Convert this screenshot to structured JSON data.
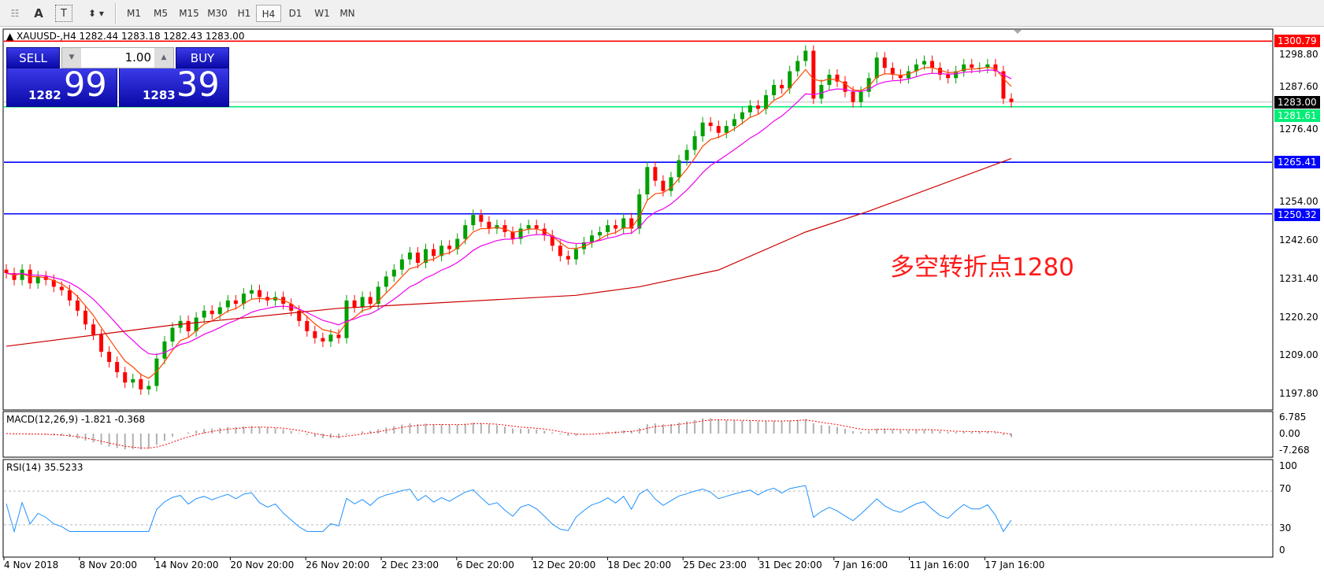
{
  "toolbar": {
    "tools": [
      {
        "icon": "grid-icon"
      },
      {
        "label": "A",
        "icon": "text-icon"
      },
      {
        "label": "T",
        "icon": "text-label-icon"
      },
      {
        "icon": "arrows-icon"
      }
    ],
    "timeframes": [
      "M1",
      "M5",
      "M15",
      "M30",
      "H1",
      "H4",
      "D1",
      "W1",
      "MN"
    ],
    "active_timeframe": "H4"
  },
  "chart": {
    "header": "XAUUSD-,H4  1282.44 1283.18 1282.43 1283.00",
    "annotation": "多空转折点1280",
    "price_ticks": [
      "1298.80",
      "1287.60",
      "1276.40",
      "1254.00",
      "1242.60",
      "1231.40",
      "1220.20",
      "1209.00",
      "1197.80"
    ],
    "levels": [
      {
        "label": "1300.79",
        "value": 1300.79,
        "color": "#ff0000"
      },
      {
        "label": "1283.00",
        "value": 1283.0,
        "color": "#000000"
      },
      {
        "label": "1281.61",
        "value": 1281.61,
        "color": "#00ee77"
      },
      {
        "label": "1265.41",
        "value": 1265.41,
        "color": "#0000ff"
      },
      {
        "label": "1250.32",
        "value": 1250.32,
        "color": "#0000ff"
      }
    ],
    "bull_color": "#00a000",
    "bear_color": "#ff0000",
    "ma_fast_color": "#ff4500",
    "ma_mid_color": "#ee00ee",
    "ma_slow_color": "#cc0000",
    "closes": [
      1233,
      1231,
      1234,
      1230,
      1232,
      1231,
      1229,
      1228,
      1225,
      1222,
      1218,
      1215,
      1210,
      1207,
      1204,
      1201,
      1202,
      1199,
      1200,
      1208,
      1213,
      1217,
      1219,
      1216,
      1220,
      1222,
      1221,
      1223,
      1225,
      1224,
      1227,
      1228,
      1226,
      1225,
      1226,
      1224,
      1222,
      1219,
      1216,
      1214,
      1213,
      1215,
      1214,
      1225,
      1223,
      1226,
      1224,
      1229,
      1232,
      1234,
      1237,
      1239,
      1236,
      1240,
      1238,
      1241,
      1240,
      1243,
      1247,
      1250,
      1248,
      1246,
      1247,
      1245,
      1243,
      1246,
      1247,
      1246,
      1244,
      1241,
      1238,
      1237,
      1240,
      1242,
      1244,
      1245,
      1247,
      1246,
      1249,
      1246,
      1256,
      1264,
      1260,
      1257,
      1261,
      1266,
      1269,
      1273,
      1277,
      1276,
      1274,
      1276,
      1278,
      1280,
      1282,
      1281,
      1285,
      1288,
      1287,
      1292,
      1295,
      1298,
      1284,
      1288,
      1291,
      1289,
      1286,
      1283,
      1286,
      1290,
      1296,
      1293,
      1291,
      1290,
      1292,
      1294,
      1295,
      1293,
      1291,
      1290,
      1292,
      1294,
      1293,
      1293,
      1294,
      1292,
      1284,
      1283
    ],
    "ma_slow": [
      [
        0,
        1211.6
      ],
      [
        21,
        1217.8
      ],
      [
        42,
        1222.7
      ],
      [
        72,
        1226.5
      ],
      [
        80,
        1229
      ],
      [
        90,
        1233.9
      ],
      [
        101,
        1245
      ],
      [
        109,
        1251.1
      ],
      [
        127,
        1266.5
      ]
    ]
  },
  "trade": {
    "sell_label": "SELL",
    "buy_label": "BUY",
    "lot": "1.00",
    "sell_big": "1282",
    "sell_small": "99",
    "buy_big": "1283",
    "buy_small": "39"
  },
  "macd": {
    "title": "MACD(12,26,9) -1.821 -0.368",
    "ticks": [
      "6.785",
      "0.00",
      "-7.268"
    ]
  },
  "rsi": {
    "title": "RSI(14) 35.5233",
    "ticks": [
      "100",
      "70",
      "30",
      "0"
    ],
    "levels": [
      70,
      30
    ],
    "color": "#1e90ff"
  },
  "time_labels": [
    "4 Nov 2018",
    "8 Nov 20:00",
    "14 Nov 20:00",
    "20 Nov 20:00",
    "26 Nov 20:00",
    "2 Dec 23:00",
    "6 Dec 20:00",
    "12 Dec 20:00",
    "18 Dec 20:00",
    "25 Dec 23:00",
    "31 Dec 20:00",
    "7 Jan 16:00",
    "11 Jan 16:00",
    "17 Jan 16:00"
  ]
}
